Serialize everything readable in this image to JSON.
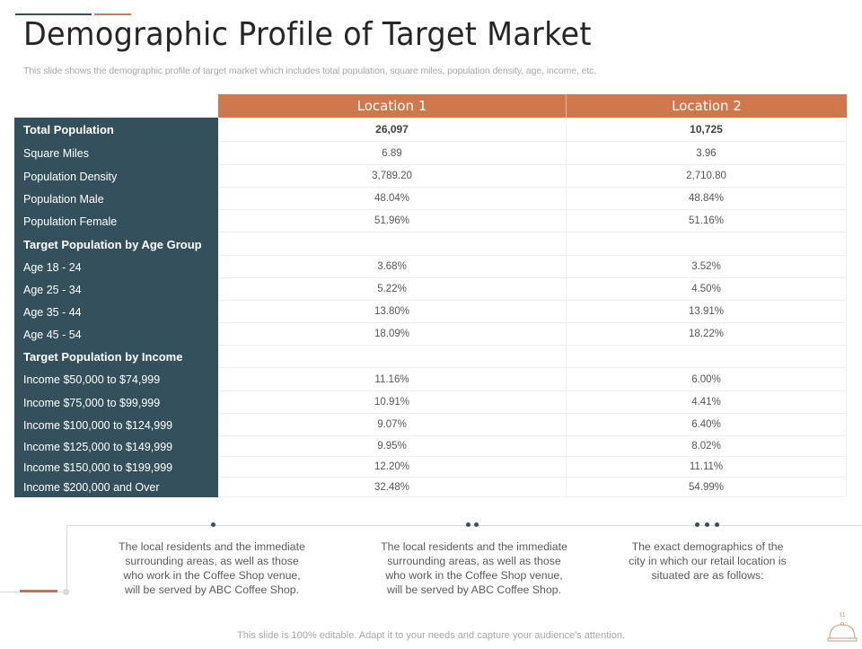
{
  "header": {
    "title": "Demographic Profile of Target Market",
    "subtitle": "This slide shows the demographic profile of target market which includes total population, square miles, population density, age, income, etc."
  },
  "colors": {
    "accent_dark": "#34505c",
    "accent_orange": "#cf784c"
  },
  "table": {
    "columns": [
      "Location 1",
      "Location 2"
    ],
    "rows": [
      {
        "label": "Total Population",
        "loc1": "26,097",
        "loc2": "10,725",
        "bold": true
      },
      {
        "label": "Square Miles",
        "loc1": "6.89",
        "loc2": "3.96"
      },
      {
        "label": "Population Density",
        "loc1": "3,789.20",
        "loc2": "2,710.80"
      },
      {
        "label": "Population Male",
        "loc1": "48.04%",
        "loc2": "48.84%"
      },
      {
        "label": "Population Female",
        "loc1": "51.96%",
        "loc2": "51.16%"
      },
      {
        "label": "Target Population by Age Group",
        "loc1": "",
        "loc2": "",
        "bold": true
      },
      {
        "label": "Age 18 - 24",
        "loc1": "3.68%",
        "loc2": "3.52%"
      },
      {
        "label": "Age 25 - 34",
        "loc1": "5.22%",
        "loc2": "4.50%"
      },
      {
        "label": "Age 35 - 44",
        "loc1": "13.80%",
        "loc2": "13.91%"
      },
      {
        "label": "Age 45 - 54",
        "loc1": "18.09%",
        "loc2": "18.22%"
      },
      {
        "label": "Target Population by Income",
        "loc1": "",
        "loc2": "",
        "bold": true
      },
      {
        "label": "Income $50,000 to $74,999",
        "loc1": "11.16%",
        "loc2": "6.00%"
      },
      {
        "label": "Income $75,000 to $99,999",
        "loc1": "10.91%",
        "loc2": "4.41%"
      },
      {
        "label": "Income $100,000 to $124,999",
        "loc1": "9.07%",
        "loc2": "6.40%"
      },
      {
        "label": "Income $125,000 to $149,999",
        "loc1": "9.95%",
        "loc2": "8.02%"
      },
      {
        "label": "Income $150,000 to $199,999",
        "loc1": "12.20%",
        "loc2": "11.11%"
      },
      {
        "label": "Income $200,000 and Over",
        "loc1": "32.48%",
        "loc2": "54.99%"
      }
    ]
  },
  "notes": [
    {
      "dots": 1,
      "text": "The local residents and the immediate surrounding areas, as well as those who work in the Coffee Shop venue, will be served by ABC Coffee Shop."
    },
    {
      "dots": 2,
      "text": "The local residents and the immediate surrounding areas, as well as those who work in the Coffee Shop venue, will be served by ABC Coffee Shop."
    },
    {
      "dots": 3,
      "text": "The exact demographics of the city in which our retail location is situated are as follows:"
    }
  ],
  "footer": {
    "text": "This slide is 100% editable. Adapt it to your needs and capture your audience's attention.",
    "page_number": "11",
    "icon": "cloche-icon"
  }
}
